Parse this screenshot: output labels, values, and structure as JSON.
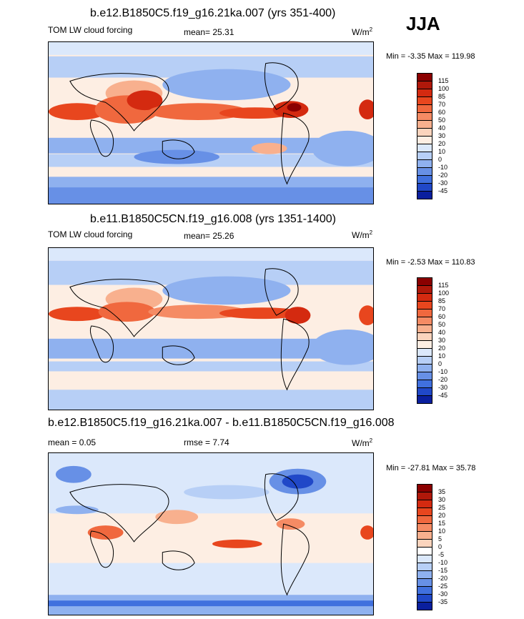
{
  "season": "JJA",
  "panels": [
    {
      "title": "b.e12.B1850C5.f19_g16.21ka.007 (yrs 351-400)",
      "left_text": "TOM LW cloud forcing",
      "mid_text": "mean=  25.31",
      "units": "W/m",
      "units_sup": "2",
      "minmax": "Min =  -3.35 Max = 119.98",
      "levels": [
        "115",
        "100",
        "85",
        "70",
        "60",
        "50",
        "40",
        "30",
        "20",
        "10",
        "0",
        "-10",
        "-20",
        "-30",
        "-45"
      ],
      "colors": [
        "#8b0000",
        "#b0180a",
        "#d42a10",
        "#e8461e",
        "#f0683e",
        "#f58b64",
        "#f8b08e",
        "#fbd4bd",
        "#fdeee3",
        "#dbe8fb",
        "#b7cff6",
        "#8fb1ef",
        "#6790e6",
        "#4070de",
        "#2048c8",
        "#0a1f9e"
      ]
    },
    {
      "title": "b.e11.B1850C5CN.f19_g16.008 (yrs 1351-1400)",
      "left_text": "TOM LW cloud forcing",
      "mid_text": "mean=  25.26",
      "units": "W/m",
      "units_sup": "2",
      "minmax": "Min =  -2.53 Max = 110.83",
      "levels": [
        "115",
        "100",
        "85",
        "70",
        "60",
        "50",
        "40",
        "30",
        "20",
        "10",
        "0",
        "-10",
        "-20",
        "-30",
        "-45"
      ],
      "colors": [
        "#8b0000",
        "#b0180a",
        "#d42a10",
        "#e8461e",
        "#f0683e",
        "#f58b64",
        "#f8b08e",
        "#fbd4bd",
        "#fdeee3",
        "#dbe8fb",
        "#b7cff6",
        "#8fb1ef",
        "#6790e6",
        "#4070de",
        "#2048c8",
        "#0a1f9e"
      ]
    },
    {
      "title": "b.e12.B1850C5.f19_g16.21ka.007 - b.e11.B1850C5CN.f19_g16.008",
      "left_text": "mean =   0.05",
      "mid_text": "rmse =   7.74",
      "units": "W/m",
      "units_sup": "2",
      "minmax": "Min = -27.81 Max =  35.78",
      "levels": [
        "35",
        "30",
        "25",
        "20",
        "15",
        "10",
        "5",
        "0",
        "-5",
        "-10",
        "-15",
        "-20",
        "-25",
        "-30",
        "-35"
      ],
      "colors": [
        "#8b0000",
        "#b0180a",
        "#d42a10",
        "#e8461e",
        "#f0683e",
        "#f58b64",
        "#f8b08e",
        "#fbd4bd",
        "#ffffff",
        "#dbe8fb",
        "#b7cff6",
        "#8fb1ef",
        "#6790e6",
        "#4070de",
        "#2048c8",
        "#0a1f9e"
      ]
    }
  ]
}
